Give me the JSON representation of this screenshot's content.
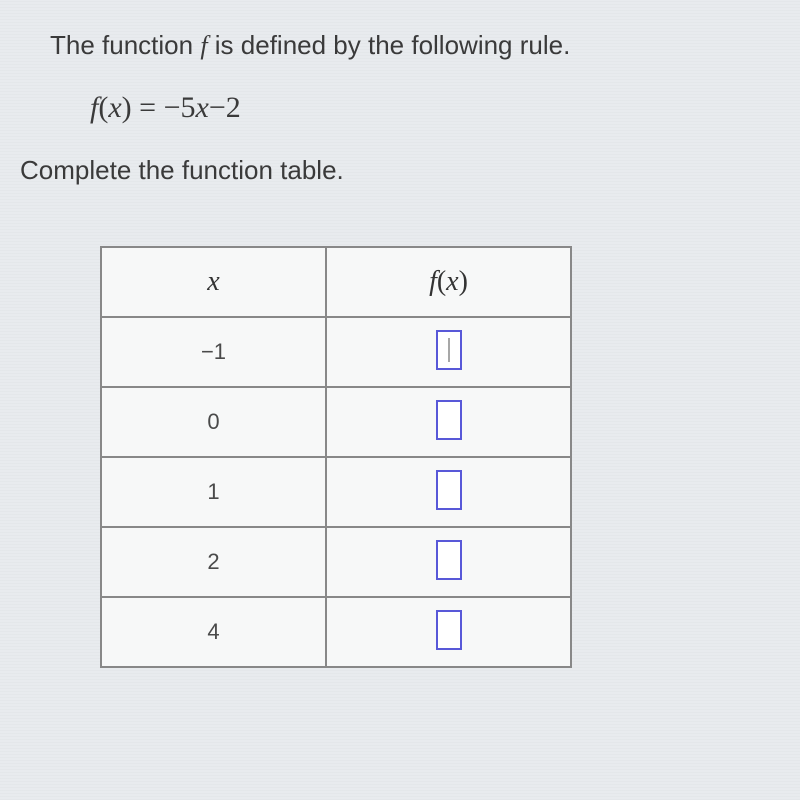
{
  "intro": {
    "prefix": "The function ",
    "func_letter": "f",
    "suffix": " is defined by the following rule."
  },
  "formula": {
    "lhs_f": "f",
    "lhs_paren_open": "(",
    "lhs_x": "x",
    "lhs_paren_close": ")",
    "equals": " = ",
    "rhs": "−5",
    "rhs_x": "x",
    "rhs_tail": "−2"
  },
  "instruction": "Complete the function table.",
  "table": {
    "header_x": "x",
    "header_fx_f": "f",
    "header_fx_paren_open": "(",
    "header_fx_x": "x",
    "header_fx_paren_close": ")",
    "rows": [
      {
        "x": "−1",
        "active": true
      },
      {
        "x": "0",
        "active": false
      },
      {
        "x": "1",
        "active": false
      },
      {
        "x": "2",
        "active": false
      },
      {
        "x": "4",
        "active": false
      }
    ]
  },
  "colors": {
    "background": "#e8ebee",
    "text": "#3a3a3a",
    "table_border": "#888888",
    "table_bg": "#f7f8f8",
    "input_border": "#5858d8",
    "input_bg": "#ffffff"
  }
}
